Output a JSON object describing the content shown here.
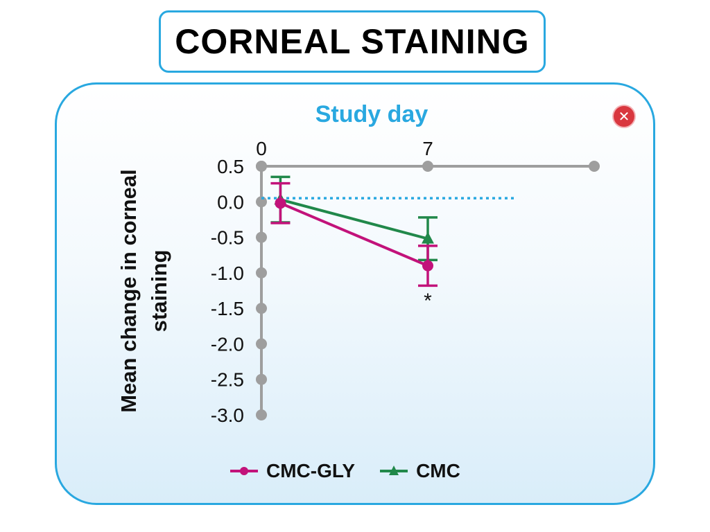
{
  "page": {
    "title": "CORNEAL STAINING"
  },
  "colors": {
    "frame": "#29a8e0",
    "axis": "#9e9e9e",
    "reference_line": "#29a8e0",
    "cmc_gly": "#c2127a",
    "cmc": "#21884a",
    "close_button": "#d9373f"
  },
  "icons": {
    "close": "close-x-icon"
  },
  "close_glyph": "✕",
  "chart_data": {
    "type": "line",
    "title": "",
    "xlabel": "Study day",
    "ylabel": "Mean change in corneal staining",
    "x_axis_position": "top",
    "x_ticks": [
      0,
      7
    ],
    "x_tick_labels": [
      "0",
      "7"
    ],
    "xlim": [
      0,
      14
    ],
    "y_ticks": [
      0.5,
      0.0,
      -0.5,
      -1.0,
      -1.5,
      -2.0,
      -2.5,
      -3.0
    ],
    "y_tick_labels": [
      "0.5",
      "0.0",
      "-0.5",
      "-1.0",
      "-1.5",
      "-2.0",
      "-2.5",
      "-3.0"
    ],
    "ylim": [
      -3.0,
      0.5
    ],
    "reference_line_y": 0.05,
    "grid": false,
    "legend_position": "bottom",
    "series": [
      {
        "name": "CMC-GLY",
        "marker": "circle",
        "x": [
          0.8,
          7
        ],
        "y": [
          -0.02,
          -0.9
        ],
        "error": [
          0.28,
          0.28
        ]
      },
      {
        "name": "CMC",
        "marker": "triangle",
        "x": [
          0.8,
          7
        ],
        "y": [
          0.03,
          -0.52
        ],
        "error": [
          0.32,
          0.3
        ]
      }
    ],
    "annotations": [
      {
        "text": "*",
        "x": 7,
        "y": -1.35
      }
    ]
  }
}
